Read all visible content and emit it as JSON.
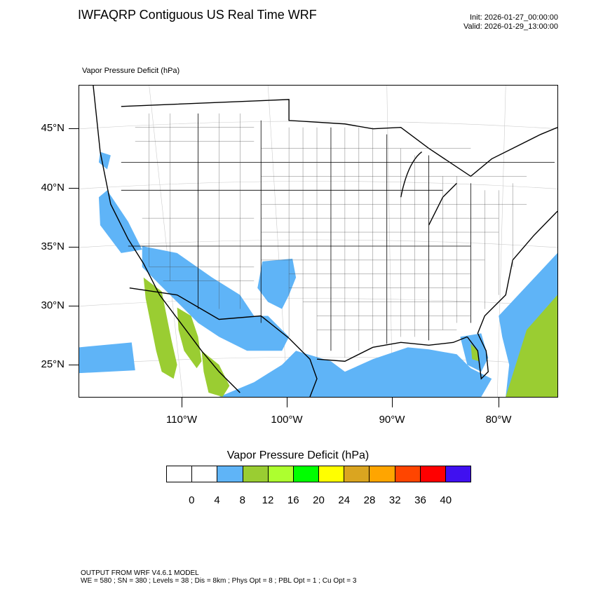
{
  "header": {
    "title": "IWFAQRP Contiguous US Real Time WRF",
    "init": "Init: 2026-01-27_00:00:00",
    "valid": "Valid: 2026-01-29_13:00:00"
  },
  "map": {
    "subtitle": "Vapor Pressure Deficit   (hPa)",
    "lat_labels": [
      "45°N",
      "40°N",
      "35°N",
      "30°N",
      "25°N"
    ],
    "lon_labels": [
      "110°W",
      "100°W",
      "90°W",
      "80°W"
    ],
    "colors": {
      "ocean_low_vpd": "#5fb4f7",
      "medium_vpd": "#9acd32",
      "land_low_vpd": "#ffffff",
      "boundary": "#000000"
    }
  },
  "colorbar": {
    "title": "Vapor Pressure Deficit  (hPa)",
    "colors": [
      "#ffffff",
      "#ffffff",
      "#5fb4f7",
      "#9acd32",
      "#adff2f",
      "#00ff00",
      "#ffff00",
      "#daa520",
      "#ffa500",
      "#ff4500",
      "#ff0000",
      "#4010f0"
    ],
    "labels": [
      "0",
      "4",
      "8",
      "12",
      "16",
      "20",
      "24",
      "28",
      "32",
      "36",
      "40"
    ]
  },
  "footer": {
    "line1": "OUTPUT FROM WRF V4.6.1 MODEL",
    "line2": "WE = 580 ; SN = 380 ; Levels = 38 ; Dis = 8km ; Phys Opt = 8 ; PBL Opt = 1 ; Cu Opt = 3"
  }
}
